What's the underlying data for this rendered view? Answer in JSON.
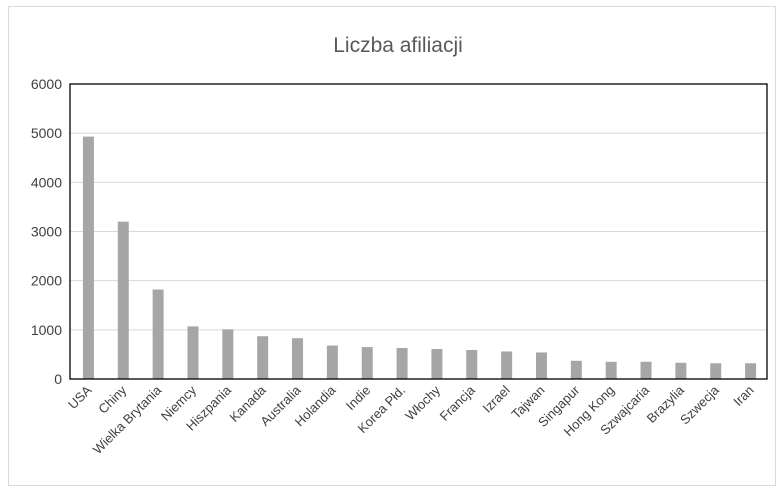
{
  "chart_data": {
    "type": "bar",
    "title": "Liczba afiliacji",
    "xlabel": "",
    "ylabel": "",
    "ylim": [
      0,
      6000
    ],
    "yticks": [
      0,
      1000,
      2000,
      3000,
      4000,
      5000,
      6000
    ],
    "grid": true,
    "legend": "none",
    "bar_color": "#a6a6a6",
    "categories": [
      "USA",
      "Chiny",
      "Wielka Brytania",
      "Niemcy",
      "Hiszpania",
      "Kanada",
      "Australia",
      "Holandia",
      "Indie",
      "Korea Płd.",
      "Włochy",
      "Francja",
      "Izrael",
      "Tajwan",
      "Singapur",
      "Hong Kong",
      "Szwajcaria",
      "Brazylia",
      "Szwecja",
      "Iran"
    ],
    "values": [
      4930,
      3200,
      1820,
      1070,
      1010,
      870,
      830,
      680,
      650,
      630,
      610,
      590,
      560,
      540,
      370,
      350,
      350,
      330,
      320,
      320
    ]
  }
}
